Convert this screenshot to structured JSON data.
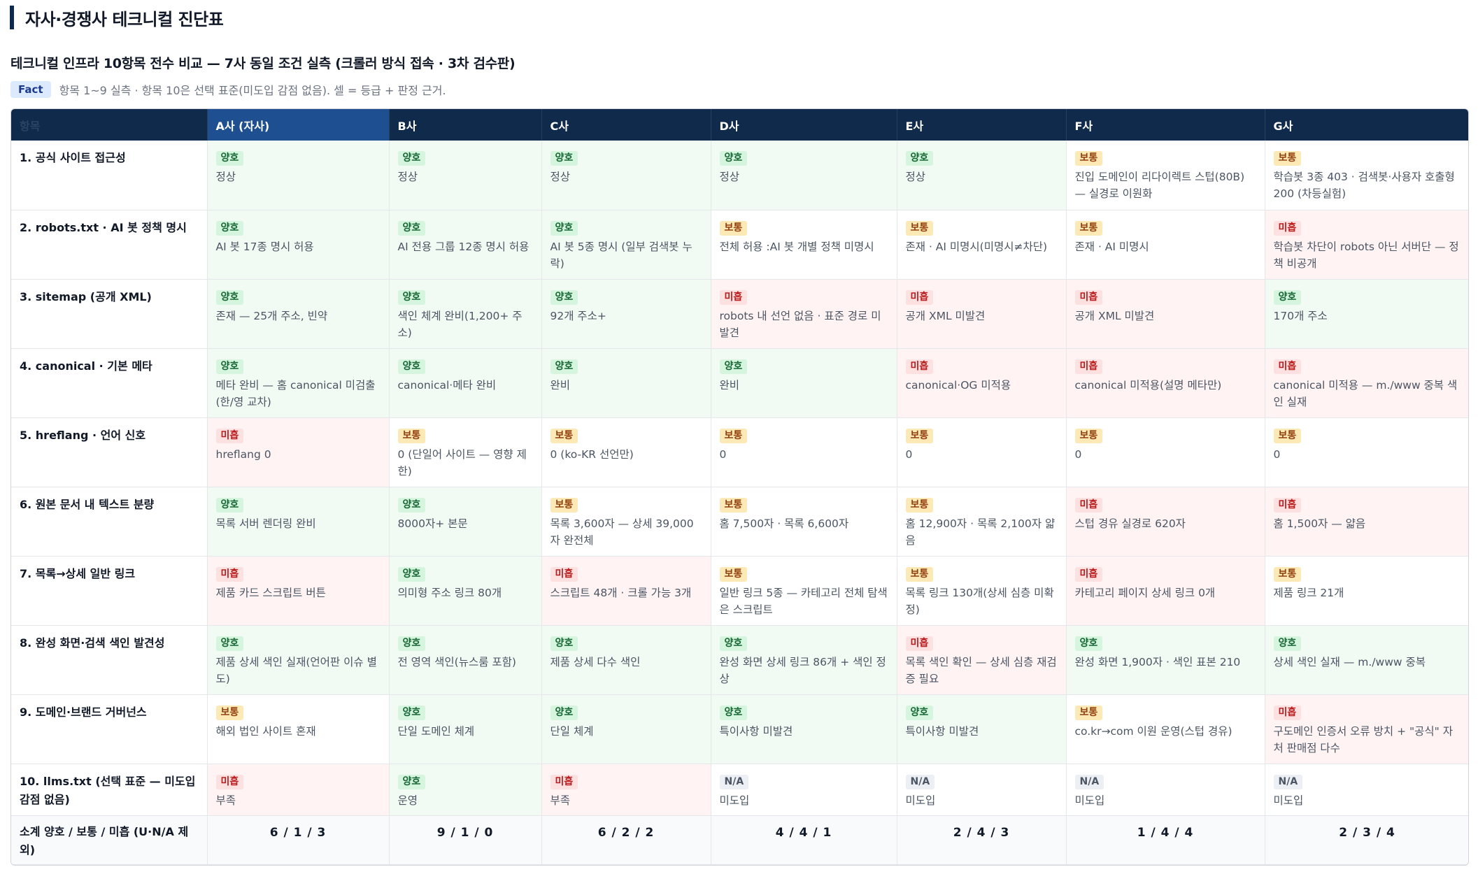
{
  "page_title": "자사·경쟁사 테크니컬 진단표",
  "section_title": "테크니컬 인프라 10항목 전수 비교 — 7사 동일 조건 실측 (크롤러 방식 접속 · 3차 검수판)",
  "fact": {
    "badge": "Fact",
    "text": "항목 1~9 실측 · 항목 10은 선택 표준(미도입 감점 없음). 셀 = 등급 + 판정 근거."
  },
  "table": {
    "corner": "항목",
    "headers": [
      "A사 (자사)",
      "B사",
      "C사",
      "D사",
      "E사",
      "F사",
      "G사"
    ],
    "rows": [
      {
        "item": "1. 공식 사이트 접근성",
        "cells": [
          {
            "grade": "양호",
            "note": "정상"
          },
          {
            "grade": "양호",
            "note": "정상"
          },
          {
            "grade": "양호",
            "note": "정상"
          },
          {
            "grade": "양호",
            "note": "정상"
          },
          {
            "grade": "양호",
            "note": "정상"
          },
          {
            "grade": "보통",
            "note": "진입 도메인이 리다이렉트 스텁(80B) — 실경로 이원화"
          },
          {
            "grade": "보통",
            "note": "학습봇 3종 403 · 검색봇·사용자 호출형 200 (차등실험)"
          }
        ]
      },
      {
        "item": "2. robots.txt · AI 봇 정책 명시",
        "cells": [
          {
            "grade": "양호",
            "note": "AI 봇 17종 명시 허용"
          },
          {
            "grade": "양호",
            "note": "AI 전용 그룹 12종 명시 허용"
          },
          {
            "grade": "양호",
            "note": "AI 봇 5종 명시 (일부 검색봇 누락)"
          },
          {
            "grade": "보통",
            "note": "전체 허용 :AI 봇 개별 정책 미명시"
          },
          {
            "grade": "보통",
            "note": "존재 · AI 미명시(미명시≠차단)"
          },
          {
            "grade": "보통",
            "note": "존재 · AI 미명시"
          },
          {
            "grade": "미흡",
            "note": "학습봇 차단이 robots 아닌 서버단 — 정책 비공개"
          }
        ]
      },
      {
        "item": "3. sitemap (공개 XML)",
        "cells": [
          {
            "grade": "양호",
            "note": "존재 — 25개 주소, 빈약"
          },
          {
            "grade": "양호",
            "note": "색인 체계 완비(1,200+ 주소)"
          },
          {
            "grade": "양호",
            "note": "92개 주소+"
          },
          {
            "grade": "미흡",
            "note": "robots 내 선언 없음 · 표준 경로 미발견"
          },
          {
            "grade": "미흡",
            "note": "공개 XML 미발견"
          },
          {
            "grade": "미흡",
            "note": "공개 XML 미발견"
          },
          {
            "grade": "양호",
            "note": "170개 주소"
          }
        ]
      },
      {
        "item": "4. canonical · 기본 메타",
        "cells": [
          {
            "grade": "양호",
            "note": "메타 완비 — 홈 canonical 미검출(한/영 교차)"
          },
          {
            "grade": "양호",
            "note": "canonical·메타 완비"
          },
          {
            "grade": "양호",
            "note": "완비"
          },
          {
            "grade": "양호",
            "note": "완비"
          },
          {
            "grade": "미흡",
            "note": "canonical·OG 미적용"
          },
          {
            "grade": "미흡",
            "note": "canonical 미적용(설명 메타만)"
          },
          {
            "grade": "미흡",
            "note": "canonical 미적용 — m./www 중복 색인 실재"
          }
        ]
      },
      {
        "item": "5. hreflang · 언어 신호",
        "cells": [
          {
            "grade": "미흡",
            "note": "hreflang 0"
          },
          {
            "grade": "보통",
            "note": "0 (단일어 사이트 — 영향 제한)"
          },
          {
            "grade": "보통",
            "note": "0 (ko-KR 선언만)"
          },
          {
            "grade": "보통",
            "note": "0"
          },
          {
            "grade": "보통",
            "note": "0"
          },
          {
            "grade": "보통",
            "note": "0"
          },
          {
            "grade": "보통",
            "note": "0"
          }
        ]
      },
      {
        "item": "6. 원본 문서 내 텍스트 분량",
        "cells": [
          {
            "grade": "양호",
            "note": "목록 서버 렌더링 완비"
          },
          {
            "grade": "양호",
            "note": "8000자+ 본문"
          },
          {
            "grade": "보통",
            "note": "목록 3,600자 — 상세 39,000자 완전체"
          },
          {
            "grade": "보통",
            "note": "홈 7,500자 · 목록 6,600자"
          },
          {
            "grade": "보통",
            "note": "홈 12,900자 · 목록 2,100자 얇음"
          },
          {
            "grade": "미흡",
            "note": "스텁 경유 실경로 620자"
          },
          {
            "grade": "미흡",
            "note": "홈 1,500자 — 얇음"
          }
        ]
      },
      {
        "item": "7. 목록→상세 일반 링크",
        "cells": [
          {
            "grade": "미흡",
            "note": "제품 카드 스크립트 버튼"
          },
          {
            "grade": "양호",
            "note": "의미형 주소 링크 80개"
          },
          {
            "grade": "미흡",
            "note": "스크립트 48개 · 크롤 가능 3개"
          },
          {
            "grade": "보통",
            "note": "일반 링크 5종 — 카테고리 전체 탐색은 스크립트"
          },
          {
            "grade": "보통",
            "note": "목록 링크 130개(상세 심층 미확정)"
          },
          {
            "grade": "미흡",
            "note": "카테고리 페이지 상세 링크 0개"
          },
          {
            "grade": "보통",
            "note": "제품 링크 21개"
          }
        ]
      },
      {
        "item": "8. 완성 화면·검색 색인 발견성",
        "cells": [
          {
            "grade": "양호",
            "note": "제품 상세 색인 실재(언어판 이슈 별도)"
          },
          {
            "grade": "양호",
            "note": "전 영역 색인(뉴스룸 포함)"
          },
          {
            "grade": "양호",
            "note": "제품 상세 다수 색인"
          },
          {
            "grade": "양호",
            "note": "완성 화면 상세 링크 86개 + 색인 정상"
          },
          {
            "grade": "미흡",
            "note": "목록 색인 확인 — 상세 심층 재검증 필요"
          },
          {
            "grade": "양호",
            "note": "완성 화면 1,900자 · 색인 표본 210"
          },
          {
            "grade": "양호",
            "note": "상세 색인 실재 — m./www 중복"
          }
        ]
      },
      {
        "item": "9. 도메인·브랜드 거버넌스",
        "cells": [
          {
            "grade": "보통",
            "note": "해외 법인 사이트 혼재"
          },
          {
            "grade": "양호",
            "note": "단일 도메인 체계"
          },
          {
            "grade": "양호",
            "note": "단일 체계"
          },
          {
            "grade": "양호",
            "note": "특이사항 미발견"
          },
          {
            "grade": "양호",
            "note": "특이사항 미발견"
          },
          {
            "grade": "보통",
            "note": "co.kr→com 이원 운영(스텁 경유)"
          },
          {
            "grade": "미흡",
            "note": "구도메인 인증서 오류 방치 + \"공식\" 자처 판매점 다수"
          }
        ]
      },
      {
        "item": "10. llms.txt (선택 표준 — 미도입 감점 없음)",
        "cells": [
          {
            "grade": "미흡",
            "note": "부족"
          },
          {
            "grade": "양호",
            "note": "운영"
          },
          {
            "grade": "미흡",
            "note": "부족"
          },
          {
            "grade": "N/A",
            "note": "미도입"
          },
          {
            "grade": "N/A",
            "note": "미도입"
          },
          {
            "grade": "N/A",
            "note": "미도입"
          },
          {
            "grade": "N/A",
            "note": "미도입"
          }
        ]
      }
    ],
    "summary": {
      "label": "소계 양호 / 보통 / 미흡 (U·N/A 제외)",
      "values": [
        "6 / 1 / 3",
        "9 / 1 / 0",
        "6 / 2 / 2",
        "4 / 4 / 1",
        "2 / 4 / 3",
        "1 / 4 / 4",
        "2 / 3 / 4"
      ]
    }
  },
  "colors": {
    "header_bg": "#0f2a4a",
    "header_highlight": "#1d4f91",
    "good_bg": "#f1faf3",
    "bad_bg": "#fff3f3",
    "good_badge": "#d6f5de",
    "mid_badge": "#fde9b5",
    "bad_badge": "#fde0e0"
  }
}
